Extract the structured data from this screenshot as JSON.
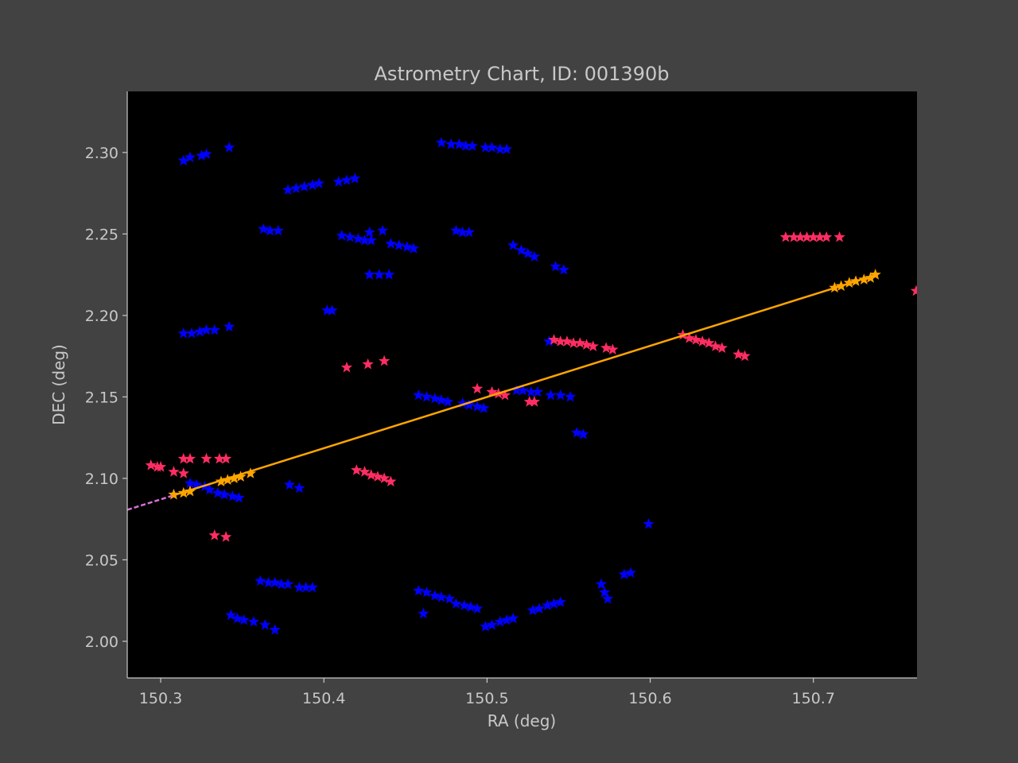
{
  "chart_data": {
    "type": "scatter",
    "title": "Astrometry Chart, ID: 001390b",
    "xlabel": "RA (deg)",
    "ylabel": "DEC (deg)",
    "xlim": [
      150.2795,
      150.7635
    ],
    "ylim": [
      1.9775,
      2.3375
    ],
    "x_ticks": [
      150.3,
      150.4,
      150.5,
      150.6,
      150.7
    ],
    "y_ticks": [
      2.0,
      2.05,
      2.1,
      2.15,
      2.2,
      2.25,
      2.3
    ],
    "x_tick_labels": [
      "150.3",
      "150.4",
      "150.5",
      "150.6",
      "150.7"
    ],
    "y_tick_labels": [
      "2.00",
      "2.05",
      "2.10",
      "2.15",
      "2.20",
      "2.25",
      "2.30"
    ],
    "grid": false,
    "background": "#000000",
    "series": [
      {
        "marker": "star",
        "color": "#0000ff",
        "points": [
          [
            150.314,
            2.295
          ],
          [
            150.318,
            2.297
          ],
          [
            150.325,
            2.298
          ],
          [
            150.328,
            2.299
          ],
          [
            150.342,
            2.303
          ],
          [
            150.378,
            2.277
          ],
          [
            150.383,
            2.278
          ],
          [
            150.388,
            2.279
          ],
          [
            150.393,
            2.28
          ],
          [
            150.397,
            2.281
          ],
          [
            150.409,
            2.282
          ],
          [
            150.414,
            2.283
          ],
          [
            150.419,
            2.284
          ],
          [
            150.472,
            2.306
          ],
          [
            150.478,
            2.305
          ],
          [
            150.483,
            2.305
          ],
          [
            150.487,
            2.304
          ],
          [
            150.491,
            2.304
          ],
          [
            150.499,
            2.303
          ],
          [
            150.503,
            2.303
          ],
          [
            150.508,
            2.302
          ],
          [
            150.512,
            2.302
          ],
          [
            150.363,
            2.253
          ],
          [
            150.367,
            2.252
          ],
          [
            150.372,
            2.252
          ],
          [
            150.411,
            2.249
          ],
          [
            150.416,
            2.248
          ],
          [
            150.421,
            2.247
          ],
          [
            150.425,
            2.246
          ],
          [
            150.429,
            2.246
          ],
          [
            150.428,
            2.251
          ],
          [
            150.436,
            2.252
          ],
          [
            150.441,
            2.244
          ],
          [
            150.446,
            2.243
          ],
          [
            150.451,
            2.242
          ],
          [
            150.455,
            2.241
          ],
          [
            150.481,
            2.252
          ],
          [
            150.485,
            2.251
          ],
          [
            150.489,
            2.251
          ],
          [
            150.516,
            2.243
          ],
          [
            150.521,
            2.24
          ],
          [
            150.525,
            2.238
          ],
          [
            150.529,
            2.236
          ],
          [
            150.542,
            2.23
          ],
          [
            150.547,
            2.228
          ],
          [
            150.428,
            2.225
          ],
          [
            150.434,
            2.225
          ],
          [
            150.44,
            2.225
          ],
          [
            150.314,
            2.189
          ],
          [
            150.319,
            2.189
          ],
          [
            150.324,
            2.19
          ],
          [
            150.328,
            2.191
          ],
          [
            150.333,
            2.191
          ],
          [
            150.342,
            2.193
          ],
          [
            150.402,
            2.203
          ],
          [
            150.405,
            2.203
          ],
          [
            150.458,
            2.151
          ],
          [
            150.463,
            2.15
          ],
          [
            150.468,
            2.149
          ],
          [
            150.472,
            2.148
          ],
          [
            150.476,
            2.147
          ],
          [
            150.485,
            2.146
          ],
          [
            150.489,
            2.145
          ],
          [
            150.494,
            2.144
          ],
          [
            150.498,
            2.143
          ],
          [
            150.518,
            2.154
          ],
          [
            150.522,
            2.154
          ],
          [
            150.527,
            2.153
          ],
          [
            150.531,
            2.153
          ],
          [
            150.538,
            2.184
          ],
          [
            150.539,
            2.151
          ],
          [
            150.545,
            2.151
          ],
          [
            150.551,
            2.15
          ],
          [
            150.555,
            2.128
          ],
          [
            150.559,
            2.127
          ],
          [
            150.318,
            2.097
          ],
          [
            150.322,
            2.096
          ],
          [
            150.327,
            2.095
          ],
          [
            150.33,
            2.093
          ],
          [
            150.335,
            2.091
          ],
          [
            150.339,
            2.09
          ],
          [
            150.344,
            2.089
          ],
          [
            150.348,
            2.088
          ],
          [
            150.379,
            2.096
          ],
          [
            150.385,
            2.094
          ],
          [
            150.599,
            2.072
          ],
          [
            150.361,
            2.037
          ],
          [
            150.366,
            2.036
          ],
          [
            150.37,
            2.036
          ],
          [
            150.374,
            2.035
          ],
          [
            150.378,
            2.035
          ],
          [
            150.385,
            2.033
          ],
          [
            150.389,
            2.033
          ],
          [
            150.393,
            2.033
          ],
          [
            150.343,
            2.016
          ],
          [
            150.347,
            2.014
          ],
          [
            150.351,
            2.013
          ],
          [
            150.357,
            2.012
          ],
          [
            150.364,
            2.01
          ],
          [
            150.37,
            2.007
          ],
          [
            150.458,
            2.031
          ],
          [
            150.463,
            2.03
          ],
          [
            150.468,
            2.028
          ],
          [
            150.472,
            2.027
          ],
          [
            150.477,
            2.026
          ],
          [
            150.461,
            2.017
          ],
          [
            150.481,
            2.023
          ],
          [
            150.486,
            2.022
          ],
          [
            150.49,
            2.021
          ],
          [
            150.494,
            2.02
          ],
          [
            150.499,
            2.009
          ],
          [
            150.503,
            2.01
          ],
          [
            150.508,
            2.012
          ],
          [
            150.512,
            2.013
          ],
          [
            150.516,
            2.014
          ],
          [
            150.528,
            2.019
          ],
          [
            150.532,
            2.02
          ],
          [
            150.537,
            2.022
          ],
          [
            150.541,
            2.023
          ],
          [
            150.545,
            2.024
          ],
          [
            150.57,
            2.035
          ],
          [
            150.572,
            2.03
          ],
          [
            150.574,
            2.026
          ],
          [
            150.584,
            2.041
          ],
          [
            150.588,
            2.042
          ]
        ]
      },
      {
        "marker": "star",
        "color": "#ff2d62",
        "points": [
          [
            150.294,
            2.108
          ],
          [
            150.298,
            2.107
          ],
          [
            150.3,
            2.107
          ],
          [
            150.308,
            2.104
          ],
          [
            150.314,
            2.103
          ],
          [
            150.314,
            2.112
          ],
          [
            150.318,
            2.112
          ],
          [
            150.328,
            2.112
          ],
          [
            150.336,
            2.112
          ],
          [
            150.34,
            2.112
          ],
          [
            150.333,
            2.065
          ],
          [
            150.34,
            2.064
          ],
          [
            150.414,
            2.168
          ],
          [
            150.427,
            2.17
          ],
          [
            150.437,
            2.172
          ],
          [
            150.42,
            2.105
          ],
          [
            150.425,
            2.104
          ],
          [
            150.429,
            2.102
          ],
          [
            150.433,
            2.101
          ],
          [
            150.437,
            2.1
          ],
          [
            150.441,
            2.098
          ],
          [
            150.494,
            2.155
          ],
          [
            150.503,
            2.153
          ],
          [
            150.507,
            2.152
          ],
          [
            150.511,
            2.151
          ],
          [
            150.526,
            2.147
          ],
          [
            150.529,
            2.147
          ],
          [
            150.541,
            2.185
          ],
          [
            150.545,
            2.184
          ],
          [
            150.549,
            2.184
          ],
          [
            150.553,
            2.183
          ],
          [
            150.557,
            2.183
          ],
          [
            150.561,
            2.182
          ],
          [
            150.565,
            2.181
          ],
          [
            150.573,
            2.18
          ],
          [
            150.577,
            2.179
          ],
          [
            150.62,
            2.188
          ],
          [
            150.624,
            2.186
          ],
          [
            150.628,
            2.185
          ],
          [
            150.632,
            2.184
          ],
          [
            150.636,
            2.183
          ],
          [
            150.64,
            2.181
          ],
          [
            150.644,
            2.18
          ],
          [
            150.654,
            2.176
          ],
          [
            150.658,
            2.175
          ],
          [
            150.683,
            2.248
          ],
          [
            150.688,
            2.248
          ],
          [
            150.692,
            2.248
          ],
          [
            150.696,
            2.248
          ],
          [
            150.7,
            2.248
          ],
          [
            150.704,
            2.248
          ],
          [
            150.708,
            2.248
          ],
          [
            150.716,
            2.248
          ],
          [
            150.763,
            2.215
          ]
        ]
      },
      {
        "marker": "star",
        "color": "#ffa500",
        "points": [
          [
            150.308,
            2.09
          ],
          [
            150.314,
            2.091
          ],
          [
            150.318,
            2.092
          ],
          [
            150.337,
            2.098
          ],
          [
            150.341,
            2.099
          ],
          [
            150.345,
            2.1
          ],
          [
            150.349,
            2.101
          ],
          [
            150.355,
            2.103
          ],
          [
            150.713,
            2.217
          ],
          [
            150.717,
            2.218
          ],
          [
            150.722,
            2.22
          ],
          [
            150.726,
            2.221
          ],
          [
            150.731,
            2.222
          ],
          [
            150.735,
            2.223
          ],
          [
            150.738,
            2.225
          ]
        ]
      }
    ],
    "lines": [
      {
        "style": "solid",
        "color": "#ffa500",
        "x": [
          150.307,
          150.737
        ],
        "y": [
          2.0893,
          2.2244
        ]
      },
      {
        "style": "dashed",
        "color": "#da70d6",
        "x": [
          150.2795,
          150.307
        ],
        "y": [
          2.0807,
          2.0893
        ]
      }
    ]
  }
}
